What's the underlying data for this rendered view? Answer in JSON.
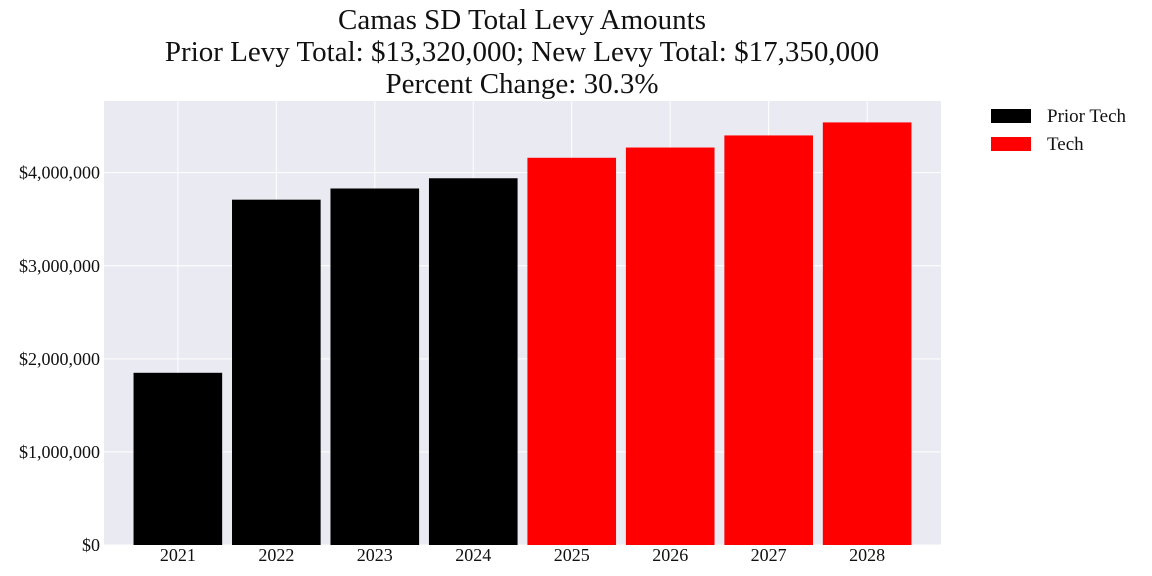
{
  "chart_data": {
    "type": "bar",
    "title_lines": [
      "Camas SD Total Levy Amounts",
      "Prior Levy Total:  $13,320,000; New Levy Total: $17,350,000",
      "Percent Change: 30.3%"
    ],
    "categories": [
      "2021",
      "2022",
      "2023",
      "2024",
      "2025",
      "2026",
      "2027",
      "2028"
    ],
    "series": [
      {
        "name": "Prior Tech",
        "color": "#000000",
        "values": [
          1850000,
          3710000,
          3830000,
          3940000,
          null,
          null,
          null,
          null
        ]
      },
      {
        "name": "Tech",
        "color": "#ff0000",
        "values": [
          null,
          null,
          null,
          null,
          4160000,
          4270000,
          4400000,
          4540000
        ]
      }
    ],
    "yticks": [
      0,
      1000000,
      2000000,
      3000000,
      4000000
    ],
    "ytick_labels": [
      "$0",
      "$1,000,000",
      "$2,000,000",
      "$3,000,000",
      "$4,000,000"
    ],
    "ylim": [
      0,
      4770000
    ],
    "grid": true,
    "plot_background": "#eaeaf2",
    "legend_position": "outside-upper-right"
  }
}
